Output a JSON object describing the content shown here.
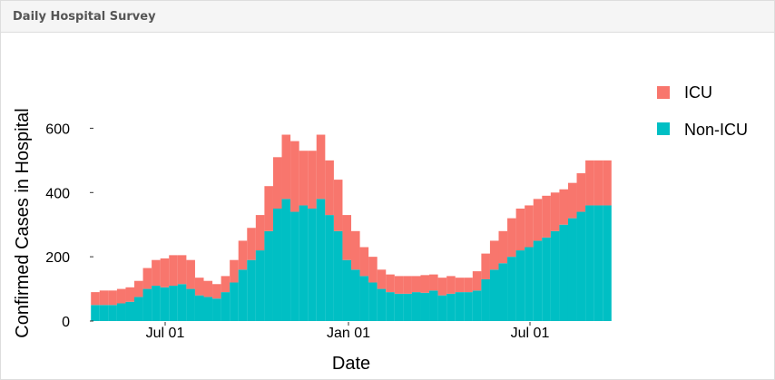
{
  "panel": {
    "title": "Daily Hospital Survey"
  },
  "colors": {
    "icu": "#F8766D",
    "non_icu": "#00BFC4",
    "panel_header": "#f5f5f5",
    "border": "#dddddd"
  },
  "chart_data": {
    "type": "bar",
    "stacked": true,
    "xlabel": "Date",
    "ylabel": "Confirmed Cases in Hospital",
    "x_tick_labels": [
      "Jul 01",
      "Jan 01",
      "Jul 01"
    ],
    "y_ticks": [
      0,
      200,
      400,
      600
    ],
    "ylim": [
      0,
      680
    ],
    "legend": {
      "position": "right",
      "entries": [
        "ICU",
        "Non-ICU"
      ]
    },
    "series": [
      {
        "name": "Non-ICU",
        "color": "#00BFC4",
        "x": [
          0,
          10,
          20,
          30,
          40,
          50,
          60,
          70,
          80,
          90,
          100,
          110,
          120,
          130,
          140,
          150,
          160,
          170,
          180,
          190,
          200,
          210,
          220,
          230,
          240,
          250,
          260,
          270,
          280,
          290,
          300,
          310,
          320,
          330,
          340,
          350,
          360,
          370,
          380,
          390,
          400,
          410,
          420,
          430,
          440,
          450,
          460,
          470,
          480,
          490,
          500,
          510,
          520,
          530,
          540,
          550,
          560,
          570,
          580,
          590
        ],
        "values": [
          50,
          50,
          50,
          55,
          60,
          75,
          100,
          110,
          105,
          110,
          115,
          100,
          80,
          75,
          70,
          90,
          120,
          160,
          190,
          220,
          280,
          350,
          380,
          340,
          360,
          350,
          380,
          330,
          280,
          190,
          160,
          140,
          120,
          100,
          90,
          85,
          85,
          90,
          88,
          95,
          80,
          85,
          90,
          90,
          95,
          130,
          160,
          180,
          200,
          220,
          230,
          250,
          260,
          280,
          300,
          320,
          340,
          360,
          360,
          360
        ]
      },
      {
        "name": "ICU",
        "color": "#F8766D",
        "x": [
          0,
          10,
          20,
          30,
          40,
          50,
          60,
          70,
          80,
          90,
          100,
          110,
          120,
          130,
          140,
          150,
          160,
          170,
          180,
          190,
          200,
          210,
          220,
          230,
          240,
          250,
          260,
          270,
          280,
          290,
          300,
          310,
          320,
          330,
          340,
          350,
          360,
          370,
          380,
          390,
          400,
          410,
          420,
          430,
          440,
          450,
          460,
          470,
          480,
          490,
          500,
          510,
          520,
          530,
          540,
          550,
          560,
          570,
          580,
          590
        ],
        "values": [
          40,
          45,
          45,
          45,
          45,
          50,
          65,
          80,
          90,
          95,
          90,
          90,
          55,
          50,
          45,
          50,
          70,
          90,
          100,
          110,
          140,
          160,
          200,
          220,
          170,
          180,
          200,
          170,
          160,
          140,
          120,
          90,
          80,
          60,
          55,
          55,
          55,
          50,
          55,
          50,
          55,
          55,
          45,
          45,
          60,
          80,
          90,
          100,
          120,
          130,
          130,
          130,
          130,
          120,
          110,
          110,
          120,
          140,
          140,
          140
        ]
      }
    ]
  }
}
